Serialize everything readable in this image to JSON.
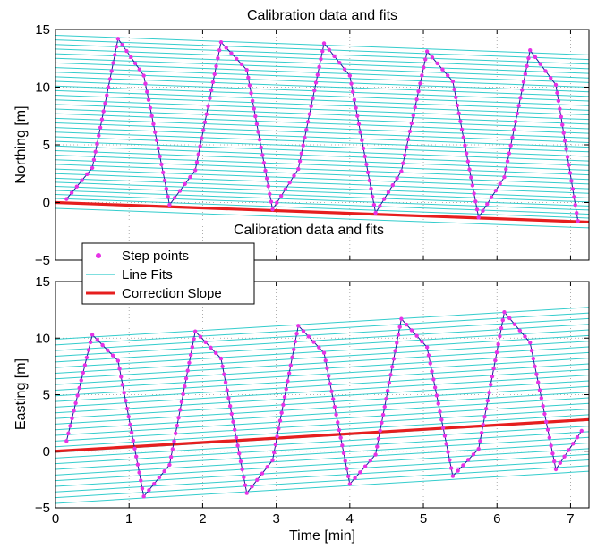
{
  "chart_data": [
    {
      "type": "line",
      "title": "Calibration data and fits",
      "inner_title": "Calibration data and fits",
      "ylabel": "Northing [m]",
      "xlabel": "",
      "xlim": [
        0,
        7.25
      ],
      "ylim": [
        -5,
        15
      ],
      "x_ticks": [
        0,
        1,
        2,
        3,
        4,
        5,
        6,
        7
      ],
      "y_ticks": [
        -5,
        0,
        5,
        10,
        15
      ],
      "show_x_tick_labels": false,
      "grid": "dotted",
      "correction_slope": {
        "x": [
          0,
          7.25
        ],
        "y": [
          0,
          -1.7
        ]
      },
      "line_fits": {
        "slope": -0.235,
        "intercepts": [
          -0.5,
          0.0,
          0.35,
          0.7,
          1.05,
          1.4,
          1.75,
          2.1,
          2.5,
          2.9,
          3.3,
          3.7,
          4.1,
          4.5,
          4.9,
          5.3,
          5.7,
          6.1,
          6.5,
          6.9,
          7.3,
          7.7,
          8.1,
          8.5,
          8.9,
          9.3,
          9.7,
          10.1,
          10.5,
          10.9,
          11.3,
          11.7,
          12.1,
          12.5,
          12.9,
          13.3,
          13.7,
          14.1,
          14.5
        ]
      },
      "step_points": {
        "x": [
          0.15,
          0.5,
          0.85,
          1.2,
          1.55,
          1.9,
          2.25,
          2.6,
          2.95,
          3.3,
          3.65,
          4.0,
          4.35,
          4.7,
          5.05,
          5.4,
          5.75,
          6.1,
          6.45,
          6.8,
          7.1
        ],
        "y": [
          0.3,
          3.0,
          14.2,
          11.0,
          -0.2,
          2.8,
          13.9,
          11.5,
          -0.6,
          2.9,
          13.8,
          11.0,
          -0.9,
          2.7,
          13.1,
          10.5,
          -1.3,
          2.2,
          13.2,
          10.2,
          -1.6
        ]
      }
    },
    {
      "type": "line",
      "title": "",
      "ylabel": "Easting [m]",
      "xlabel": "Time [min]",
      "xlim": [
        0,
        7.25
      ],
      "ylim": [
        -5,
        15
      ],
      "x_ticks": [
        0,
        1,
        2,
        3,
        4,
        5,
        6,
        7
      ],
      "y_ticks": [
        -5,
        0,
        5,
        10,
        15
      ],
      "show_x_tick_labels": true,
      "grid": "dotted",
      "correction_slope": {
        "x": [
          0,
          7.25
        ],
        "y": [
          0,
          2.8
        ]
      },
      "line_fits": {
        "slope": 0.39,
        "intercepts": [
          -4.6,
          -4.1,
          -3.6,
          -3.1,
          -2.6,
          -2.1,
          -1.6,
          -1.1,
          -0.6,
          -0.1,
          0.4,
          0.9,
          1.4,
          1.9,
          2.4,
          2.9,
          3.4,
          3.9,
          4.4,
          4.9,
          5.4,
          5.9,
          6.4,
          6.9,
          7.4,
          7.9,
          8.4,
          8.9,
          9.4,
          9.9
        ]
      },
      "step_points": {
        "x": [
          0.15,
          0.5,
          0.85,
          1.2,
          1.55,
          1.9,
          2.25,
          2.6,
          2.95,
          3.3,
          3.65,
          4.0,
          4.35,
          4.7,
          5.05,
          5.4,
          5.75,
          6.1,
          6.45,
          6.8,
          7.15
        ],
        "y": [
          0.9,
          10.3,
          8.0,
          -4.0,
          -1.2,
          10.6,
          8.2,
          -3.7,
          -0.8,
          11.1,
          8.7,
          -2.9,
          -0.3,
          11.7,
          9.2,
          -2.2,
          0.2,
          12.3,
          9.6,
          -1.6,
          1.8
        ]
      }
    }
  ],
  "legend": {
    "items": [
      {
        "label": "Step points",
        "color": "#e632e6",
        "kind": "marker"
      },
      {
        "label": "Line Fits",
        "color": "#33cccc",
        "kind": "thin-line"
      },
      {
        "label": "Correction Slope",
        "color": "#e61e1e",
        "kind": "thick-line"
      }
    ]
  },
  "colors": {
    "fit": "#33cccc",
    "correction": "#e61e1e",
    "step": "#e632e6",
    "path": "#1a1a99",
    "grid": "#999999"
  }
}
